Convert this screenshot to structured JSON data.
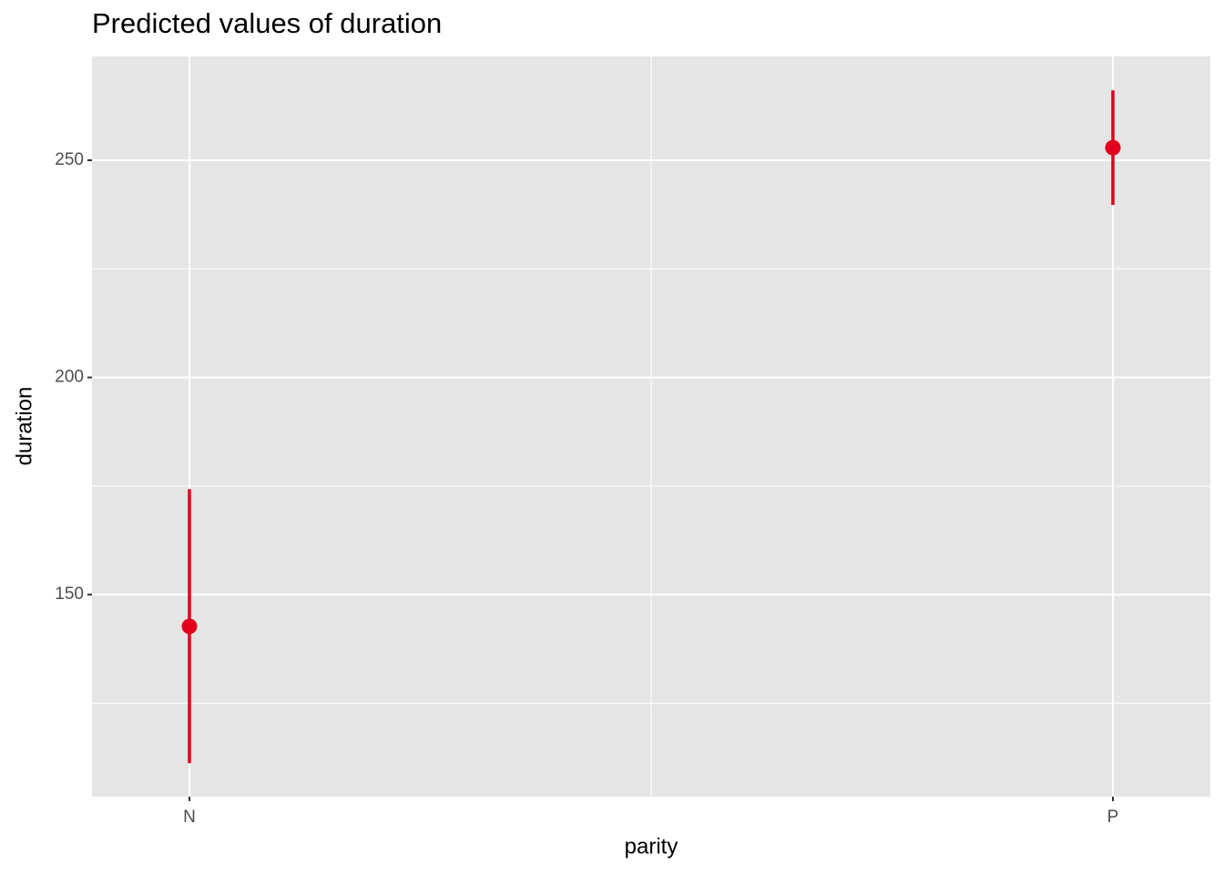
{
  "chart_data": {
    "type": "pointrange",
    "title": "Predicted values of duration",
    "x_label": "parity",
    "y_label": "duration",
    "categories": [
      "N",
      "P"
    ],
    "series": [
      {
        "color": "#e2001a",
        "values": [
          142.7,
          252.9
        ],
        "lower": [
          111.2,
          239.7
        ],
        "upper": [
          174.3,
          266.1
        ]
      }
    ],
    "ylim": [
      103.5,
      273.9
    ],
    "yticks": [
      150,
      200,
      250
    ],
    "minor_yticks": [
      125,
      175,
      225
    ],
    "grid": true,
    "panel_color": "#e5e5e5"
  }
}
